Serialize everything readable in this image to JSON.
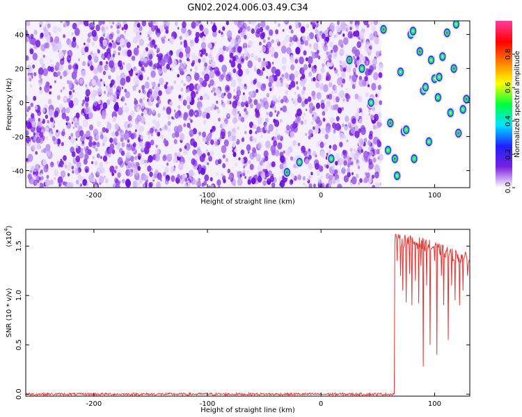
{
  "title": "GN02.2024.006.03.49.C34",
  "colors": {
    "background": "#ffffff",
    "axis": "#000000",
    "snr_line": "#e8322f",
    "noise_purple_dark": "#7a20e0",
    "noise_purple_light": "#dcc6f7"
  },
  "chart_data": [
    {
      "type": "heatmap",
      "title": "GN02.2024.006.03.49.C34",
      "xlabel": "Height of straight line (km)",
      "ylabel": "Frequency (Hz)",
      "xlim": [
        -260,
        131
      ],
      "ylim": [
        -50,
        48
      ],
      "x_ticks": [
        -200,
        -100,
        0,
        100
      ],
      "x_tick_labels": [
        "-200",
        "-100",
        "0",
        "100"
      ],
      "y_ticks": [
        40,
        20,
        0,
        -20,
        -40
      ],
      "y_tick_labels": [
        "40",
        "20",
        "0",
        "-20",
        "-40"
      ],
      "noise_region_x": [
        -260,
        53
      ],
      "clear_region_x": [
        53,
        131
      ],
      "colorbar": {
        "label": "Normalized spectral amplitude",
        "range": [
          0.0,
          1.0
        ],
        "ticks": [
          0.0,
          0.2,
          0.4,
          0.6,
          0.8
        ],
        "tick_labels": [
          "0.0",
          "0.2",
          "0.4",
          "0.6",
          "0.8"
        ],
        "colormap": [
          "#ffffff",
          "#7a20e0",
          "#2020ff",
          "#00e5ff",
          "#00ff3c",
          "#ffff00",
          "#ff8000",
          "#ff0000",
          "#ff3ca0"
        ]
      },
      "peaks": [
        {
          "x": 55,
          "y": 43
        },
        {
          "x": 79,
          "y": 40
        },
        {
          "x": 81,
          "y": 42
        },
        {
          "x": 87,
          "y": 30
        },
        {
          "x": 97,
          "y": 25
        },
        {
          "x": 107,
          "y": 27
        },
        {
          "x": 111,
          "y": 41
        },
        {
          "x": 119,
          "y": 46
        },
        {
          "x": 70,
          "y": 18
        },
        {
          "x": 117,
          "y": 20
        },
        {
          "x": 100,
          "y": 14
        },
        {
          "x": 104,
          "y": 15
        },
        {
          "x": 90,
          "y": 7
        },
        {
          "x": 92,
          "y": 9
        },
        {
          "x": 103,
          "y": 3
        },
        {
          "x": 128,
          "y": 2
        },
        {
          "x": 125,
          "y": -4
        },
        {
          "x": 114,
          "y": -6
        },
        {
          "x": 61,
          "y": -12
        },
        {
          "x": 73,
          "y": -17
        },
        {
          "x": 75,
          "y": -16
        },
        {
          "x": 121,
          "y": -18
        },
        {
          "x": 95,
          "y": -23
        },
        {
          "x": 59,
          "y": -28
        },
        {
          "x": 65,
          "y": -33
        },
        {
          "x": 82,
          "y": -33
        },
        {
          "x": 67,
          "y": -43
        },
        {
          "x": -30,
          "y": -41
        },
        {
          "x": 9,
          "y": -33
        },
        {
          "x": -19,
          "y": -35
        },
        {
          "x": 25,
          "y": 25
        },
        {
          "x": 36,
          "y": 20
        },
        {
          "x": 44,
          "y": 0
        }
      ]
    },
    {
      "type": "line",
      "xlabel": "Height of straight line (km)",
      "ylabel": "SNR (10 * v/v)",
      "y_scale_label": "(x10",
      "y_scale_exponent": "4",
      "y_scale_suffix": ")",
      "xlim": [
        -260,
        131
      ],
      "ylim": [
        -0.02,
        1.67
      ],
      "x_ticks": [
        -200,
        -100,
        0,
        100
      ],
      "x_tick_labels": [
        "-200",
        "-100",
        "0",
        "100"
      ],
      "y_ticks": [
        0.0,
        0.5,
        1.0,
        1.5
      ],
      "y_tick_labels": [
        "0.0",
        "0.5",
        "1.0",
        "1.5"
      ],
      "series": [
        {
          "color": "#e8322f",
          "baseline_level": 0.0,
          "jump_x": 65,
          "x": [
            -260,
            64,
            65,
            70,
            75,
            80,
            85,
            90,
            95,
            100,
            105,
            110,
            115,
            120,
            125,
            131
          ],
          "values": [
            0.0,
            0.0,
            1.57,
            1.55,
            1.56,
            1.55,
            1.53,
            1.52,
            1.5,
            1.48,
            1.46,
            1.44,
            1.42,
            1.4,
            1.38,
            1.36
          ],
          "dips": [
            {
              "x": 67,
              "y": 1.35
            },
            {
              "x": 70,
              "y": 1.2
            },
            {
              "x": 72,
              "y": 1.05
            },
            {
              "x": 75,
              "y": 0.93
            },
            {
              "x": 78,
              "y": 1.22
            },
            {
              "x": 80,
              "y": 0.9
            },
            {
              "x": 83,
              "y": 1.15
            },
            {
              "x": 86,
              "y": 0.92
            },
            {
              "x": 88,
              "y": 1.3
            },
            {
              "x": 90,
              "y": 0.28
            },
            {
              "x": 93,
              "y": 1.1
            },
            {
              "x": 96,
              "y": 0.5
            },
            {
              "x": 100,
              "y": 1.35
            },
            {
              "x": 102,
              "y": 0.4
            },
            {
              "x": 106,
              "y": 1.2
            },
            {
              "x": 108,
              "y": 0.9
            },
            {
              "x": 112,
              "y": 0.55
            },
            {
              "x": 115,
              "y": 1.1
            },
            {
              "x": 118,
              "y": 0.95
            },
            {
              "x": 122,
              "y": 0.9
            },
            {
              "x": 125,
              "y": 1.05
            },
            {
              "x": 129,
              "y": 1.2
            }
          ]
        }
      ]
    }
  ]
}
